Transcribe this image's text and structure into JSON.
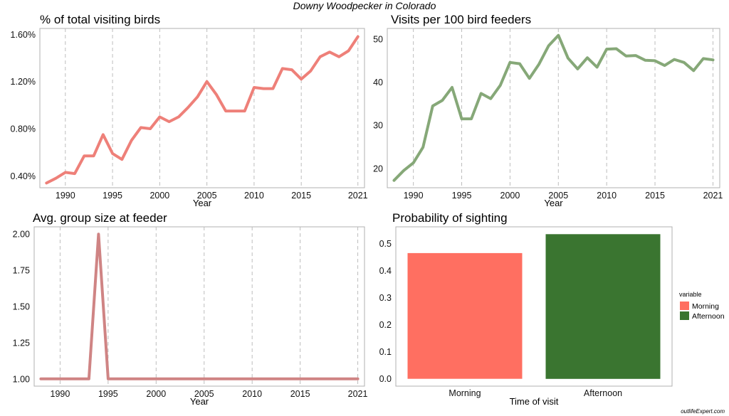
{
  "figure": {
    "title": "Downy Woodpecker in Colorado",
    "credit": "outlifeExpert.com"
  },
  "chart_data": [
    {
      "type": "line",
      "title": "% of total visiting birds",
      "xlabel": "Year",
      "ylabel": "",
      "x_ticks": [
        1990,
        1995,
        2000,
        2005,
        2010,
        2015,
        2021
      ],
      "y_ticks": [
        "0.40%",
        "0.80%",
        "1.20%",
        "1.60%"
      ],
      "xlim": [
        1987.3,
        2021.7
      ],
      "ylim": [
        0.3,
        1.65
      ],
      "grid": "vertical dashed at x ticks",
      "color": "#EE8079",
      "x": [
        1988,
        1989,
        1990,
        1991,
        1992,
        1993,
        1994,
        1995,
        1996,
        1997,
        1998,
        1999,
        2000,
        2001,
        2002,
        2003,
        2004,
        2005,
        2006,
        2007,
        2008,
        2009,
        2010,
        2011,
        2012,
        2013,
        2014,
        2015,
        2016,
        2017,
        2018,
        2019,
        2020,
        2021
      ],
      "y": [
        0.34,
        0.38,
        0.43,
        0.42,
        0.57,
        0.57,
        0.75,
        0.59,
        0.54,
        0.7,
        0.81,
        0.8,
        0.9,
        0.86,
        0.9,
        0.98,
        1.07,
        1.2,
        1.09,
        0.95,
        0.95,
        0.95,
        1.15,
        1.14,
        1.14,
        1.31,
        1.3,
        1.22,
        1.29,
        1.41,
        1.45,
        1.41,
        1.46,
        1.58
      ]
    },
    {
      "type": "line",
      "title": "Visits per 100 bird feeders",
      "xlabel": "Year",
      "ylabel": "",
      "x_ticks": [
        1990,
        1995,
        2000,
        2005,
        2010,
        2015,
        2021
      ],
      "y_ticks": [
        "20",
        "30",
        "40",
        "50"
      ],
      "xlim": [
        1987.3,
        2021.7
      ],
      "ylim": [
        15.5,
        52.5
      ],
      "grid": "vertical dashed at x ticks",
      "color": "#86A878",
      "x": [
        1988,
        1989,
        1990,
        1991,
        1992,
        1993,
        1994,
        1995,
        1996,
        1997,
        1998,
        1999,
        2000,
        2001,
        2002,
        2003,
        2004,
        2005,
        2006,
        2007,
        2008,
        2009,
        2010,
        2011,
        2012,
        2013,
        2014,
        2015,
        2016,
        2017,
        2018,
        2019,
        2020,
        2021
      ],
      "y": [
        17.2,
        19.5,
        21.3,
        24.9,
        34.5,
        35.8,
        38.8,
        31.5,
        31.5,
        37.4,
        36.2,
        39.3,
        44.6,
        44.3,
        40.9,
        44.2,
        48.5,
        50.9,
        45.6,
        43.1,
        45.7,
        43.5,
        47.7,
        47.8,
        46.1,
        46.2,
        45.1,
        45.0,
        43.9,
        45.3,
        44.6,
        42.7,
        45.5,
        45.2
      ]
    },
    {
      "type": "line",
      "title": "Avg. group size at feeder",
      "xlabel": "Year",
      "ylabel": "",
      "x_ticks": [
        1990,
        1995,
        2000,
        2005,
        2010,
        2015,
        2021
      ],
      "y_ticks": [
        "1.00",
        "1.25",
        "1.50",
        "1.75",
        "2.00"
      ],
      "xlim": [
        1987.3,
        2021.7
      ],
      "ylim": [
        0.95,
        2.05
      ],
      "grid": "vertical dashed at x ticks",
      "color": "#CF8484",
      "x": [
        1988,
        1989,
        1990,
        1991,
        1992,
        1993,
        1994,
        1995,
        1996,
        1997,
        1998,
        1999,
        2000,
        2001,
        2002,
        2003,
        2004,
        2005,
        2006,
        2007,
        2008,
        2009,
        2010,
        2011,
        2012,
        2013,
        2014,
        2015,
        2016,
        2017,
        2018,
        2019,
        2020,
        2021
      ],
      "y": [
        1,
        1,
        1,
        1,
        1,
        1,
        2,
        1,
        1,
        1,
        1,
        1,
        1,
        1,
        1,
        1,
        1,
        1,
        1,
        1,
        1,
        1,
        1,
        1,
        1,
        1,
        1,
        1,
        1,
        1,
        1,
        1,
        1,
        1
      ]
    },
    {
      "type": "bar",
      "title": "Probability of sighting",
      "xlabel": "Time of visit",
      "ylabel": "",
      "categories": [
        "Morning",
        "Afternoon"
      ],
      "values": [
        0.465,
        0.535
      ],
      "colors": [
        "#FF6F61",
        "#3A7530"
      ],
      "y_ticks": [
        "0.0",
        "0.1",
        "0.2",
        "0.3",
        "0.4",
        "0.5"
      ],
      "ylim": [
        -0.027,
        0.562
      ],
      "legend": {
        "title": "variable",
        "position": "right",
        "entries": [
          "Morning",
          "Afternoon"
        ]
      }
    }
  ]
}
